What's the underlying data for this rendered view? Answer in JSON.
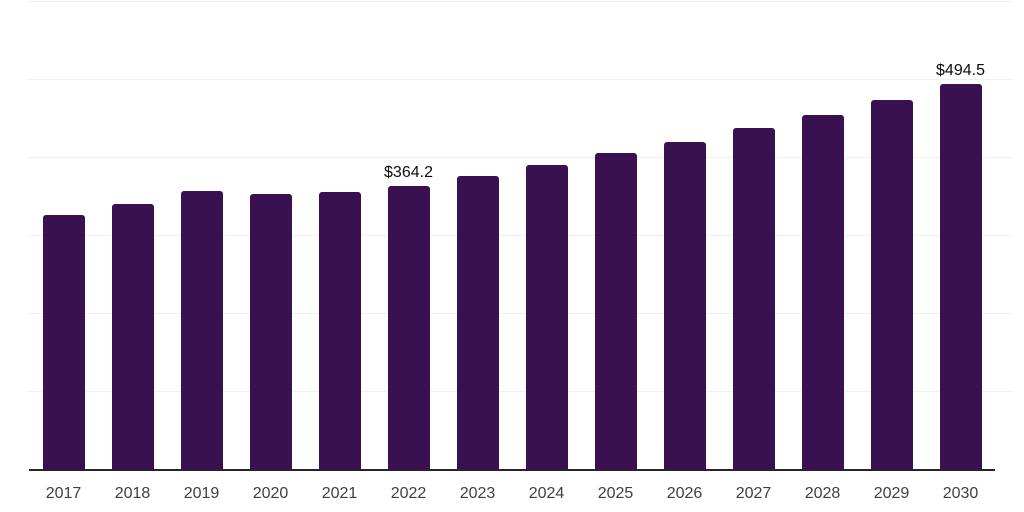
{
  "chart_data": {
    "type": "bar",
    "title": "",
    "xlabel": "",
    "ylabel": "",
    "categories": [
      "2017",
      "2018",
      "2019",
      "2020",
      "2021",
      "2022",
      "2023",
      "2024",
      "2025",
      "2026",
      "2027",
      "2028",
      "2029",
      "2030"
    ],
    "values": [
      326.9,
      341.0,
      357.7,
      353.8,
      356.4,
      364.2,
      376.9,
      391.0,
      406.4,
      420.5,
      438.5,
      455.1,
      474.4,
      494.5
    ],
    "data_labels": [
      "",
      "",
      "",
      "",
      "",
      "$364.2",
      "",
      "",
      "",
      "",
      "",
      "",
      "",
      "$494.5"
    ],
    "ylim": [
      0,
      600
    ],
    "gridlines": [
      0,
      100,
      200,
      300,
      400,
      500,
      600
    ],
    "grid": true,
    "legend": false,
    "legend_position": "none"
  },
  "style": {
    "bar_color": "#3A1150",
    "grid_color": "#F0F0F0",
    "axis_line_color": "#262626",
    "value_label_color": "#0D0D0D",
    "tick_label_color": "#3F3F3F",
    "background_color": "#FFFFFF"
  }
}
